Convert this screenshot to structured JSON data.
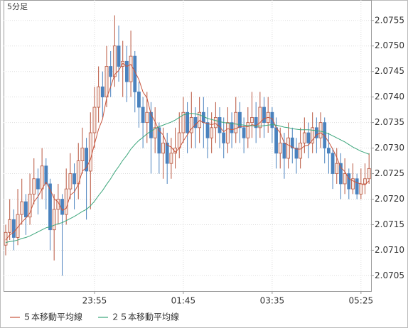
{
  "chart_data": {
    "type": "candlestick",
    "title": "5分足",
    "title_color": "#3cb4e6",
    "categories": [
      null,
      null,
      null,
      null,
      null,
      null,
      null,
      null,
      null,
      null,
      null,
      null,
      null,
      null,
      null,
      null,
      null,
      null,
      null,
      null,
      null,
      null,
      "23:55",
      null,
      null,
      null,
      null,
      null,
      null,
      null,
      null,
      null,
      null,
      null,
      null,
      null,
      null,
      null,
      null,
      null,
      null,
      null,
      null,
      null,
      "01:45",
      null,
      null,
      null,
      null,
      null,
      null,
      null,
      null,
      null,
      null,
      null,
      null,
      null,
      null,
      null,
      null,
      null,
      null,
      null,
      null,
      null,
      "03:35",
      null,
      null,
      null,
      null,
      null,
      null,
      null,
      null,
      null,
      null,
      null,
      null,
      null,
      null,
      null,
      null,
      null,
      null,
      null,
      null,
      null,
      "05:25",
      null,
      null
    ],
    "open": [
      2.0711,
      2.07135,
      2.0716,
      2.07125,
      2.0717,
      2.07195,
      2.07165,
      2.0721,
      2.0724,
      2.0722,
      2.07265,
      2.0723,
      2.0714,
      2.0718,
      2.072,
      2.0717,
      2.0722,
      2.0725,
      2.0723,
      2.07275,
      2.073,
      2.07255,
      2.0733,
      2.0738,
      2.0742,
      2.074,
      2.0746,
      2.0744,
      2.075,
      2.0746,
      2.0747,
      2.0743,
      2.0748,
      2.0741,
      2.0738,
      2.0735,
      2.0737,
      2.0732,
      2.0734,
      2.0729,
      2.0731,
      2.0727,
      2.0729,
      2.073,
      2.0733,
      2.0737,
      2.0733,
      2.0736,
      2.0734,
      2.0737,
      2.0735,
      2.0732,
      2.0734,
      2.0736,
      2.0733,
      2.0731,
      2.0735,
      2.0733,
      2.0737,
      2.0734,
      2.0732,
      2.0735,
      2.0736,
      2.0734,
      2.0738,
      2.0735,
      2.0737,
      2.0734,
      2.0729,
      2.0731,
      2.0728,
      2.0732,
      2.073,
      2.0728,
      2.0731,
      2.0733,
      2.0731,
      2.0734,
      2.0732,
      2.0735,
      2.073,
      2.0729,
      2.0725,
      2.0727,
      2.0723,
      2.0725,
      2.0722,
      2.0724,
      2.0721,
      2.0723,
      2.0724
    ],
    "high": [
      2.0715,
      2.072,
      2.0718,
      2.0722,
      2.0724,
      2.0721,
      2.0725,
      2.0728,
      2.0726,
      2.073,
      2.0728,
      2.0724,
      2.0721,
      2.0723,
      2.0721,
      2.0726,
      2.0729,
      2.0727,
      2.0731,
      2.0734,
      2.0732,
      2.0737,
      2.0742,
      2.0746,
      2.0745,
      2.075,
      2.0749,
      2.0756,
      2.0754,
      2.0751,
      2.075,
      2.0753,
      2.0749,
      2.0743,
      2.074,
      2.0741,
      2.0739,
      2.0738,
      2.0735,
      2.0734,
      2.0733,
      2.0732,
      2.0734,
      2.0737,
      2.074,
      2.0739,
      2.0741,
      2.0738,
      2.074,
      2.074,
      2.0738,
      2.0737,
      2.0739,
      2.0738,
      2.0736,
      2.0738,
      2.0737,
      2.074,
      2.0739,
      2.0736,
      2.0738,
      2.0741,
      2.0739,
      2.0741,
      2.074,
      2.074,
      2.0738,
      2.0736,
      2.0734,
      2.0733,
      2.0735,
      2.0734,
      2.0732,
      2.0734,
      2.0736,
      2.0735,
      2.0737,
      2.0736,
      2.0737,
      2.0736,
      2.0733,
      2.073,
      2.073,
      2.0729,
      2.0728,
      2.0726,
      2.0727,
      2.0725,
      2.0726,
      2.0727,
      2.0729
    ],
    "low": [
      2.0709,
      2.0712,
      2.071,
      2.0711,
      2.0715,
      2.0713,
      2.0715,
      2.0719,
      2.0717,
      2.072,
      2.0718,
      2.071,
      2.0708,
      2.0715,
      2.0705,
      2.0715,
      2.072,
      2.0718,
      2.072,
      2.0725,
      2.0716,
      2.0718,
      2.073,
      2.0735,
      2.0736,
      2.0738,
      2.074,
      2.0742,
      2.0743,
      2.074,
      2.0739,
      2.074,
      2.0737,
      2.0734,
      2.073,
      2.0731,
      2.0725,
      2.0729,
      2.0725,
      2.0724,
      2.0723,
      2.0724,
      2.0726,
      2.0728,
      2.0731,
      2.0729,
      2.073,
      2.073,
      2.0731,
      2.073,
      2.0728,
      2.0729,
      2.0731,
      2.073,
      2.0728,
      2.0729,
      2.073,
      2.0731,
      2.0731,
      2.0729,
      2.073,
      2.0732,
      2.0731,
      2.0732,
      2.0732,
      2.0733,
      2.0731,
      2.0726,
      2.0726,
      2.0724,
      2.0726,
      2.0727,
      2.0725,
      2.0726,
      2.0729,
      2.0728,
      2.0729,
      2.0729,
      2.073,
      2.0727,
      2.0725,
      2.0722,
      2.0723,
      2.072,
      2.0721,
      2.072,
      2.0721,
      2.072,
      2.072,
      2.0721,
      2.0723
    ],
    "close": [
      2.07135,
      2.0716,
      2.07125,
      2.0717,
      2.07195,
      2.07165,
      2.0721,
      2.0724,
      2.0722,
      2.07265,
      2.0723,
      2.0714,
      2.0718,
      2.072,
      2.0717,
      2.0722,
      2.0725,
      2.0723,
      2.07275,
      2.073,
      2.07255,
      2.0733,
      2.0738,
      2.0742,
      2.074,
      2.0746,
      2.0744,
      2.075,
      2.0746,
      2.0747,
      2.0743,
      2.0748,
      2.0741,
      2.0738,
      2.0735,
      2.0737,
      2.0732,
      2.0734,
      2.0729,
      2.0731,
      2.0727,
      2.0729,
      2.073,
      2.0733,
      2.0737,
      2.0733,
      2.0736,
      2.0734,
      2.0737,
      2.0735,
      2.0732,
      2.0734,
      2.0736,
      2.0733,
      2.0731,
      2.0735,
      2.0733,
      2.0737,
      2.0734,
      2.0732,
      2.0735,
      2.0736,
      2.0734,
      2.0738,
      2.0735,
      2.0737,
      2.0734,
      2.0729,
      2.0731,
      2.0728,
      2.0732,
      2.073,
      2.0728,
      2.0731,
      2.0733,
      2.0731,
      2.0734,
      2.0732,
      2.0735,
      2.073,
      2.0729,
      2.0725,
      2.0727,
      2.0723,
      2.0725,
      2.0722,
      2.0724,
      2.0721,
      2.0723,
      2.0724,
      2.0726
    ],
    "up_color": "#b8553e",
    "down_color": "#4a82be",
    "series": [
      {
        "name": "５本移動平均線",
        "color": "#c8553d",
        "values": [
          2.0712,
          2.0713,
          2.07135,
          2.07145,
          2.07155,
          2.07163,
          2.07173,
          2.07195,
          2.07205,
          2.0722,
          2.07233,
          2.07219,
          2.07201,
          2.07194,
          2.07178,
          2.07182,
          2.07208,
          2.07214,
          2.07229,
          2.07255,
          2.07262,
          2.07278,
          2.07308,
          2.07337,
          2.07357,
          2.07398,
          2.0742,
          2.07444,
          2.07452,
          2.07466,
          2.0746,
          2.07464,
          2.0745,
          2.07434,
          2.0741,
          2.07398,
          2.07366,
          2.07352,
          2.07334,
          2.07326,
          2.07306,
          2.07302,
          2.07292,
          2.073,
          2.07314,
          2.07326,
          2.07338,
          2.07346,
          2.07354,
          2.0735,
          2.07348,
          2.07346,
          2.07348,
          2.07342,
          2.07332,
          2.07338,
          2.07336,
          2.07338,
          2.07342,
          2.07342,
          2.07342,
          2.07346,
          2.07344,
          2.0735,
          2.07358,
          2.0736,
          2.07358,
          2.0734,
          2.0733,
          2.0731,
          2.07306,
          2.07302,
          2.07298,
          2.07298,
          2.07304,
          2.07306,
          2.07316,
          2.07326,
          2.0733,
          2.07324,
          2.07312,
          2.07298,
          2.07282,
          2.07262,
          2.07254,
          2.0724,
          2.07236,
          2.07232,
          2.0723,
          2.07228,
          2.07236
        ]
      },
      {
        "name": "２５本移動平均線",
        "color": "#3aa57a",
        "values": [
          2.07115,
          2.07117,
          2.07118,
          2.0712,
          2.07123,
          2.07125,
          2.07128,
          2.07132,
          2.07136,
          2.0714,
          2.07144,
          2.07146,
          2.07149,
          2.07152,
          2.07154,
          2.07158,
          2.07162,
          2.07166,
          2.07171,
          2.07176,
          2.0718,
          2.07187,
          2.07196,
          2.07207,
          2.07217,
          2.07229,
          2.0724,
          2.07253,
          2.07264,
          2.07276,
          2.07286,
          2.07298,
          2.07307,
          2.07315,
          2.07321,
          2.07328,
          2.07333,
          2.07338,
          2.07342,
          2.07345,
          2.07348,
          2.07351,
          2.07355,
          2.0736,
          2.07365,
          2.07367,
          2.07368,
          2.07367,
          2.07365,
          2.07362,
          2.07358,
          2.07356,
          2.07354,
          2.07352,
          2.0735,
          2.07349,
          2.07348,
          2.07347,
          2.07346,
          2.07345,
          2.07344,
          2.07344,
          2.07343,
          2.07343,
          2.07344,
          2.07345,
          2.07346,
          2.07345,
          2.07343,
          2.07341,
          2.0734,
          2.07338,
          2.07337,
          2.07336,
          2.07336,
          2.07336,
          2.07335,
          2.07334,
          2.07333,
          2.07331,
          2.07328,
          2.07324,
          2.0732,
          2.07316,
          2.07312,
          2.07307,
          2.07302,
          2.07298,
          2.07294,
          2.07291,
          2.07288
        ]
      }
    ],
    "ylim": [
      2.0702,
      2.0759
    ],
    "yticks": [
      2.0705,
      {
        "value": 2.071,
        "label": "2.0710"
      },
      2.0715,
      {
        "value": 2.072,
        "label": "2.0720"
      },
      2.0725,
      {
        "value": 2.073,
        "label": "2.0730"
      },
      2.0735,
      {
        "value": 2.074,
        "label": "2.0740"
      },
      2.0745,
      {
        "value": 2.075,
        "label": "2.0750"
      },
      2.0755
    ],
    "grid": true
  }
}
